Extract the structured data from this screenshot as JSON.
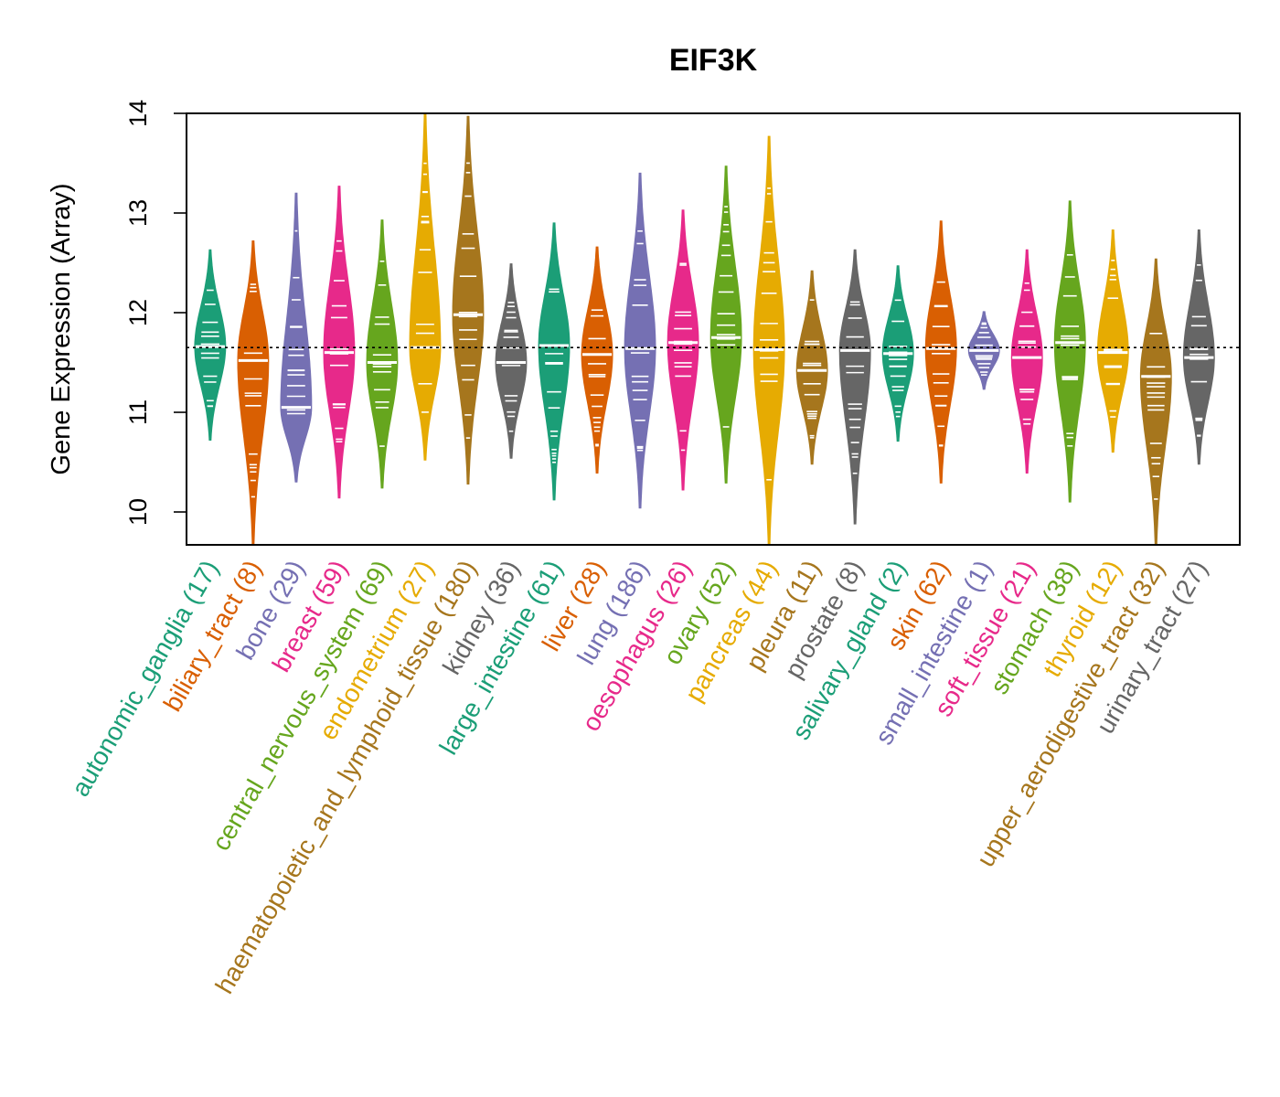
{
  "chart_data": {
    "type": "violin",
    "title": "EIF3K",
    "ylabel": "Gene Expression (Array)",
    "xlabel": "",
    "ylim": [
      9.67,
      14.0
    ],
    "yticks": [
      10,
      11,
      12,
      13,
      14
    ],
    "reference_line": 11.65,
    "categories": [
      {
        "label": "autonomic_ganglia (17)",
        "color": "#1B9E77",
        "min": 10.72,
        "max": 12.63,
        "median": 11.66
      },
      {
        "label": "biliary_tract (8)",
        "color": "#D95F02",
        "min": 9.67,
        "max": 12.72,
        "median": 11.52
      },
      {
        "label": "bone (29)",
        "color": "#7570B3",
        "min": 10.3,
        "max": 13.2,
        "median": 11.05
      },
      {
        "label": "breast (59)",
        "color": "#E7298A",
        "min": 10.14,
        "max": 13.27,
        "median": 11.6
      },
      {
        "label": "central_nervous_system (69)",
        "color": "#66A61E",
        "min": 10.24,
        "max": 12.93,
        "median": 11.5
      },
      {
        "label": "endometrium (27)",
        "color": "#E6AB02",
        "min": 10.52,
        "max": 14.0,
        "median": 11.65
      },
      {
        "label": "haematopoietic_and_lymphoid_tissue (180)",
        "color": "#A6761D",
        "min": 10.28,
        "max": 13.97,
        "median": 11.98
      },
      {
        "label": "kidney (36)",
        "color": "#666666",
        "min": 10.54,
        "max": 12.49,
        "median": 11.5
      },
      {
        "label": "large_intestine (61)",
        "color": "#1B9E77",
        "min": 10.12,
        "max": 12.9,
        "median": 11.67
      },
      {
        "label": "liver (28)",
        "color": "#D95F02",
        "min": 10.39,
        "max": 12.66,
        "median": 11.58
      },
      {
        "label": "lung (186)",
        "color": "#7570B3",
        "min": 10.04,
        "max": 13.4,
        "median": 11.64
      },
      {
        "label": "oesophagus (26)",
        "color": "#E7298A",
        "min": 10.22,
        "max": 13.03,
        "median": 11.7
      },
      {
        "label": "ovary (52)",
        "color": "#66A61E",
        "min": 10.29,
        "max": 13.47,
        "median": 11.75
      },
      {
        "label": "pancreas (44)",
        "color": "#E6AB02",
        "min": 9.67,
        "max": 13.77,
        "median": 11.63
      },
      {
        "label": "pleura (11)",
        "color": "#A6761D",
        "min": 10.48,
        "max": 12.42,
        "median": 11.42
      },
      {
        "label": "prostate (8)",
        "color": "#666666",
        "min": 9.88,
        "max": 12.63,
        "median": 11.62
      },
      {
        "label": "salivary_gland (2)",
        "color": "#1B9E77",
        "min": 10.71,
        "max": 12.47,
        "median": 11.59
      },
      {
        "label": "skin (62)",
        "color": "#D95F02",
        "min": 10.29,
        "max": 12.92,
        "median": 11.64
      },
      {
        "label": "small_intestine (1)",
        "color": "#7570B3",
        "min": 11.23,
        "max": 12.01,
        "median": 11.62
      },
      {
        "label": "soft_tissue (21)",
        "color": "#E7298A",
        "min": 10.39,
        "max": 12.63,
        "median": 11.55
      },
      {
        "label": "stomach (38)",
        "color": "#66A61E",
        "min": 10.1,
        "max": 13.12,
        "median": 11.7
      },
      {
        "label": "thyroid (12)",
        "color": "#E6AB02",
        "min": 10.6,
        "max": 12.83,
        "median": 11.6
      },
      {
        "label": "upper_aerodigestive_tract (32)",
        "color": "#A6761D",
        "min": 9.67,
        "max": 12.54,
        "median": 11.36
      },
      {
        "label": "urinary_tract (27)",
        "color": "#666666",
        "min": 10.48,
        "max": 12.83,
        "median": 11.55
      }
    ]
  }
}
